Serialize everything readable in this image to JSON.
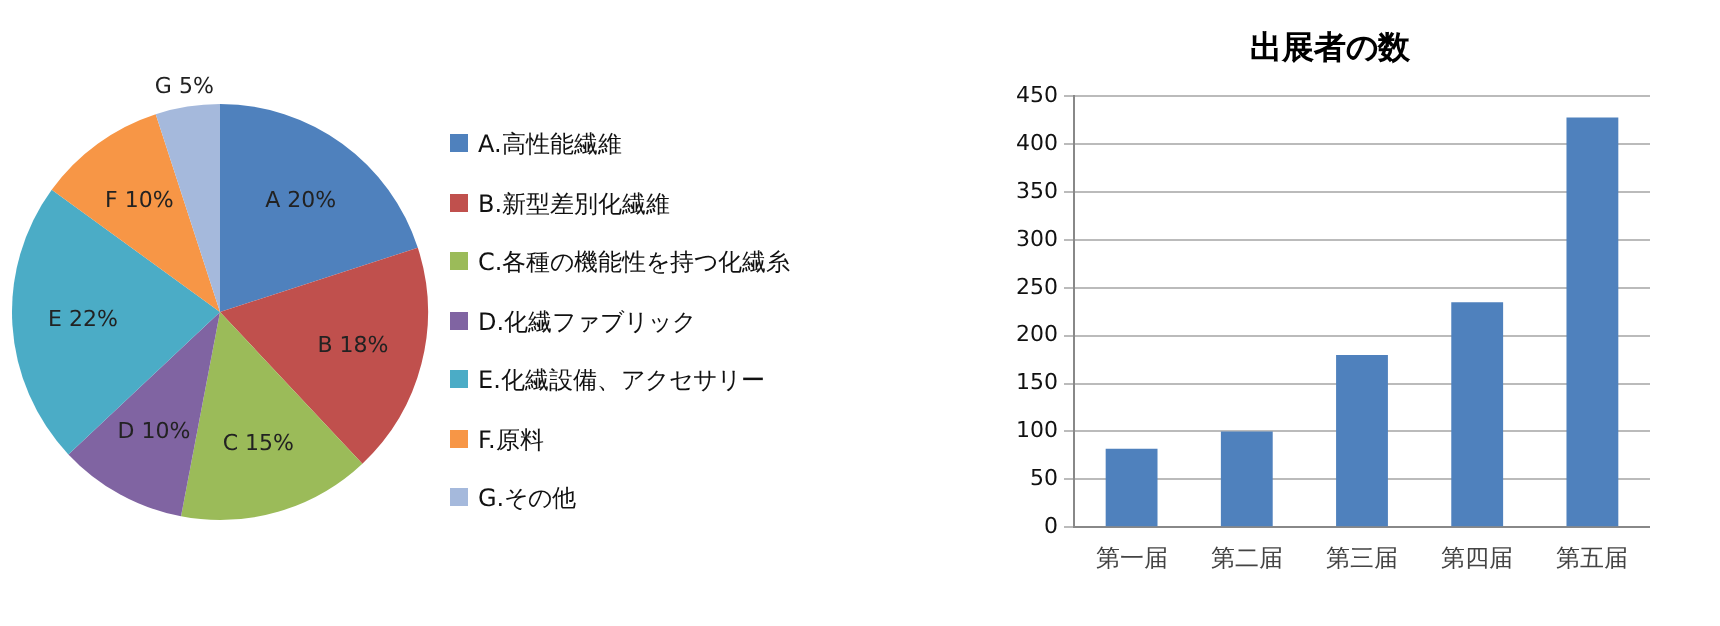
{
  "chart_data": [
    {
      "type": "pie",
      "categories": [
        "A.高性能繊維",
        "B.新型差別化繊維",
        "C.各種の機能性を持つ化繊糸",
        "D.化繊ファブリック",
        "E.化繊設備、アクセサリー",
        "F.原料",
        "G.その他"
      ],
      "values": [
        20,
        18,
        15,
        10,
        22,
        10,
        5
      ],
      "colors": [
        "#4f81bd",
        "#c0504d",
        "#9bbb59",
        "#8064a2",
        "#4bacc6",
        "#f79646",
        "#a5b9dc"
      ],
      "value_labels": [
        "A 20%",
        "B 18%",
        "C 15%",
        "D 10%",
        "E 22%",
        "F 10%",
        "G 5%"
      ],
      "legend": "right"
    },
    {
      "type": "bar",
      "title": "出展者の数",
      "categories": [
        "第一届",
        "第二届",
        "第三届",
        "第四届",
        "第五届"
      ],
      "values": [
        82,
        100,
        180,
        235,
        428
      ],
      "color": "#4f81bd",
      "ylim": [
        0,
        450
      ],
      "yticks": [
        0,
        50,
        100,
        150,
        200,
        250,
        300,
        350,
        400,
        450
      ],
      "grid": "y"
    }
  ]
}
